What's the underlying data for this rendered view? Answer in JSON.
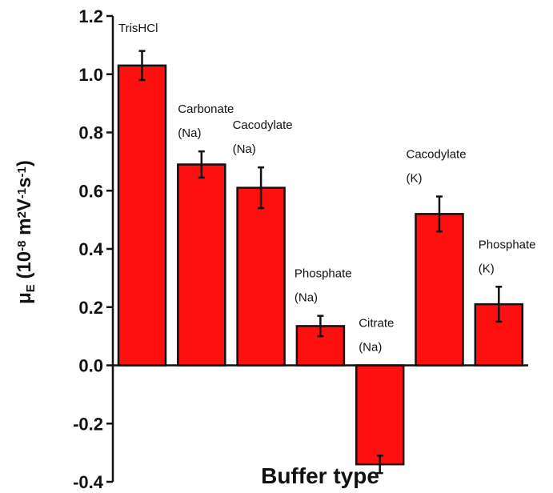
{
  "chart_data": {
    "type": "bar",
    "title": "",
    "xlabel": "Buffer type",
    "ylabel_parts": [
      {
        "t": "μ"
      },
      {
        "t": "E",
        "sub": true
      },
      {
        "t": " (10"
      },
      {
        "t": "-8",
        "sup": true
      },
      {
        "t": " m"
      },
      {
        "t": "2",
        "sup": true
      },
      {
        "t": "V"
      },
      {
        "t": "-1",
        "sup": true
      },
      {
        "t": "s"
      },
      {
        "t": "-1",
        "sup": true
      },
      {
        "t": ")"
      }
    ],
    "ylim": [
      -0.4,
      1.2
    ],
    "yticks": [
      "-0.4",
      "-0.2",
      "0.0",
      "0.2",
      "0.4",
      "0.6",
      "0.8",
      "1.0",
      "1.2"
    ],
    "grid": false,
    "bar_color": "#ff1010",
    "categories": [
      [
        "TrisHCl"
      ],
      [
        "Carbonate",
        "(Na)"
      ],
      [
        "Cacodylate",
        "(Na)"
      ],
      [
        "Phosphate",
        "(Na)"
      ],
      [
        "Citrate",
        "(Na)"
      ],
      [
        "Cacodylate",
        "(K)"
      ],
      [
        "Phosphate",
        "(K)"
      ]
    ],
    "values": [
      1.03,
      0.69,
      0.61,
      0.135,
      -0.34,
      0.52,
      0.21
    ],
    "errors": [
      0.05,
      0.045,
      0.07,
      0.035,
      0.03,
      0.06,
      0.06
    ]
  }
}
